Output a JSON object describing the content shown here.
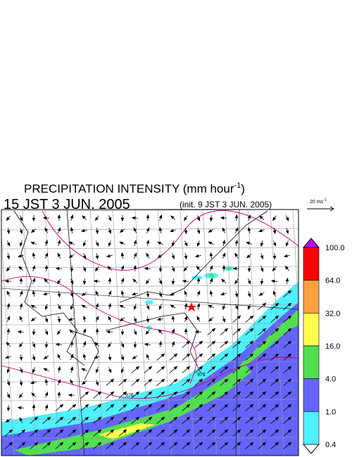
{
  "title": {
    "text": "PRECIPITATION INTENSITY (mm hour",
    "sup": "-1",
    "close": ")"
  },
  "valid_time": "15 JST 3 JUN. 2005",
  "init_time": "(init. 9 JST 3 JUN. 2005)",
  "vector_key": {
    "text": "20 ms",
    "sup": "-1"
  },
  "colorbar": {
    "labels": [
      "100.0",
      "64.0",
      "32.0",
      "16.0",
      "4.0",
      "1.0",
      "0.4"
    ],
    "colors": [
      "#ff0000",
      "#ffa040",
      "#ffff50",
      "#50e050",
      "#6464ff",
      "#50f0ff"
    ],
    "over_color": "#c000ff",
    "under_color": "#ffffff"
  },
  "contour_labels": [
    "976",
    "976"
  ]
}
